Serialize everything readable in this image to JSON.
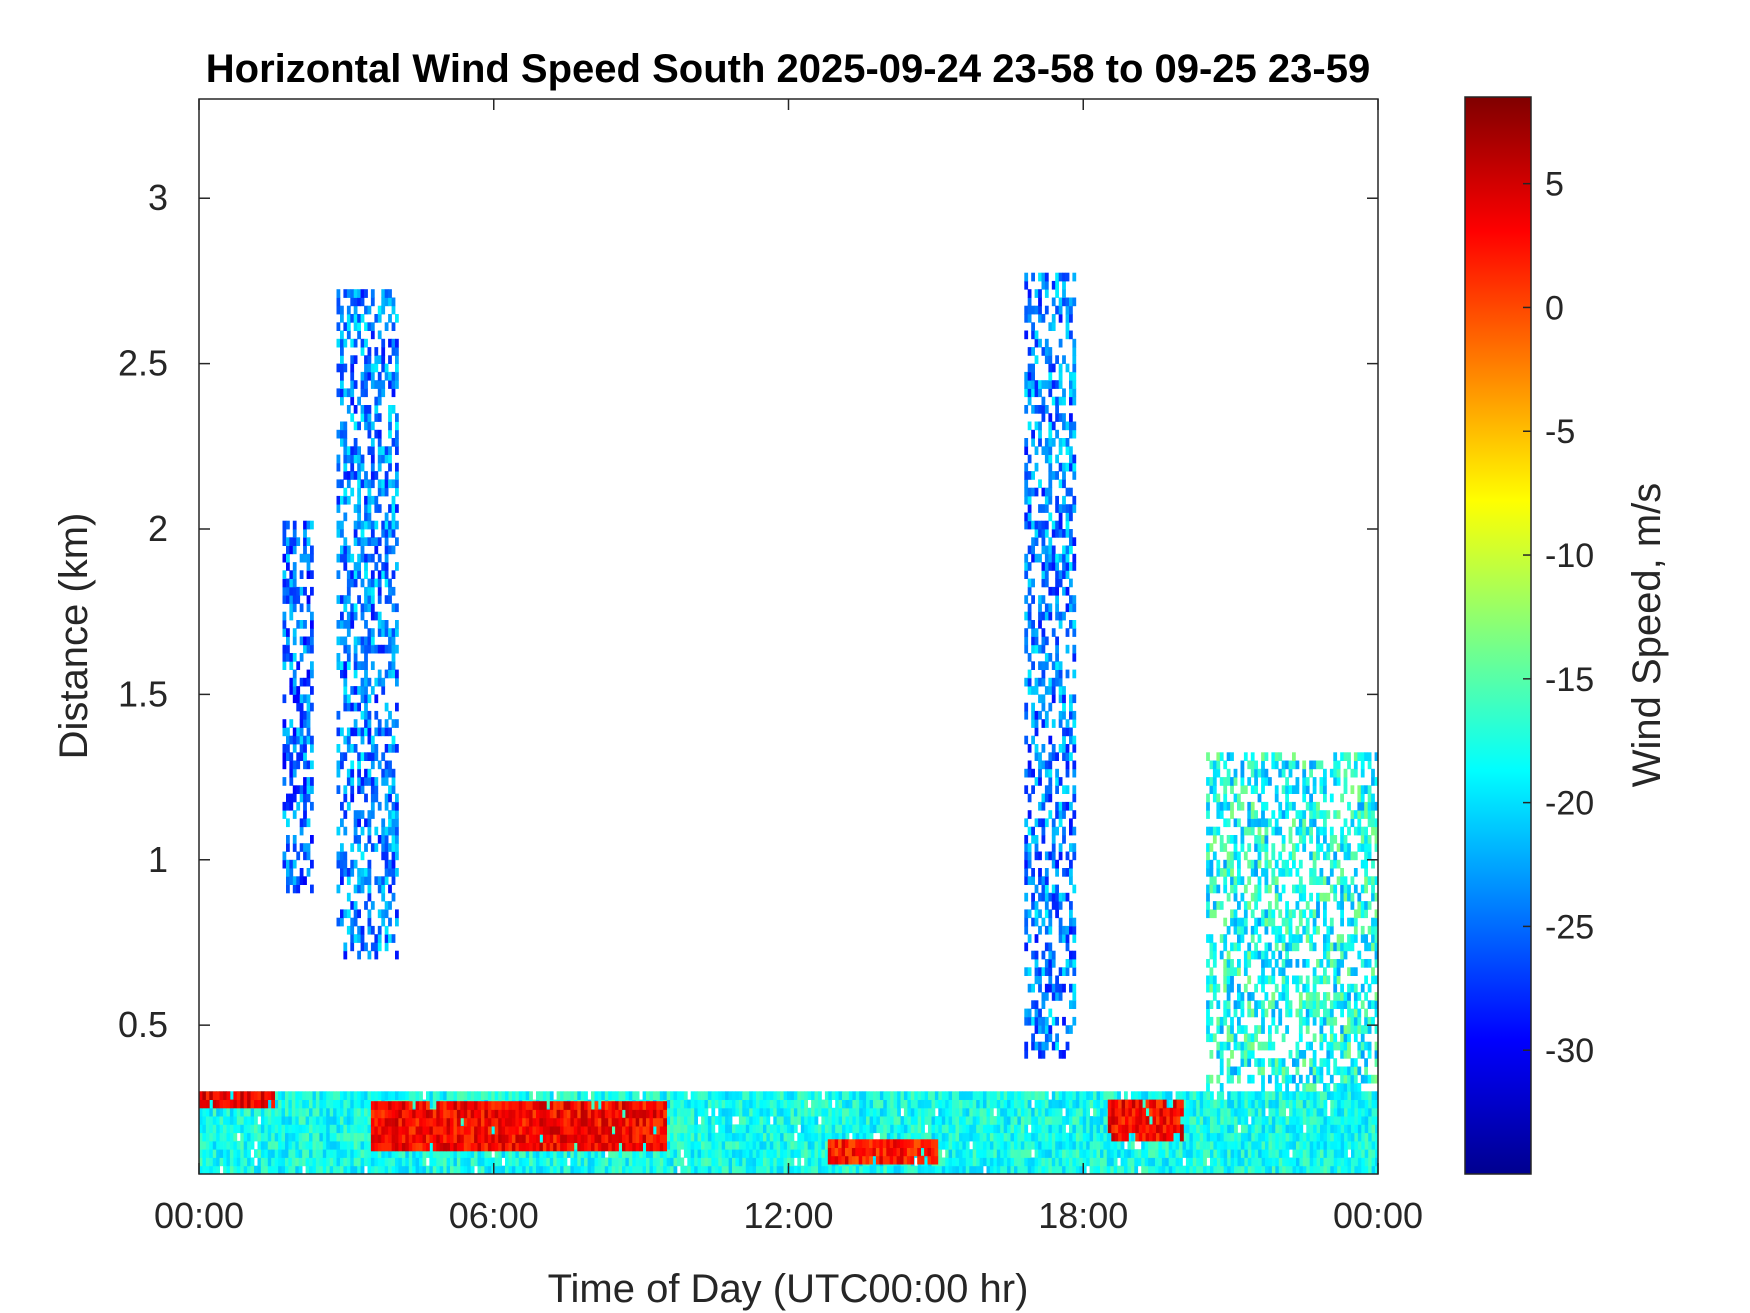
{
  "chart_data": {
    "type": "heatmap",
    "title": "Horizontal Wind Speed South 2025-09-24 23-58 to 09-25 23-59",
    "xlabel": "Time of Day (UTC00:00 hr)",
    "ylabel": "Distance (km)",
    "colorbar_label": "Wind Speed, m/s",
    "colormap": "jet",
    "x_ticks": [
      "00:00",
      "06:00",
      "12:00",
      "18:00",
      "00:00"
    ],
    "x_tick_hours": [
      0,
      6,
      12,
      18,
      24
    ],
    "xlim_hours": [
      0,
      24
    ],
    "y_ticks": [
      "0.5",
      "1",
      "1.5",
      "2",
      "2.5",
      "3"
    ],
    "y_tick_values": [
      0.5,
      1,
      1.5,
      2,
      2.5,
      3
    ],
    "ylim": [
      0.05,
      3.3
    ],
    "colorbar_ticks": [
      "5",
      "0",
      "-5",
      "-10",
      "-15",
      "-20",
      "-25",
      "-30"
    ],
    "colorbar_tick_values": [
      5,
      0,
      -5,
      -10,
      -15,
      -20,
      -25,
      -30
    ],
    "clim": [
      -35,
      8.5
    ],
    "grid": false,
    "legend": "colorbar-right",
    "features": [
      {
        "label": "near-surface layer",
        "hours": [
          0,
          24
        ],
        "distance_km": [
          0.05,
          0.3
        ],
        "wind_speed": -18
      },
      {
        "label": "jet core",
        "hours": [
          0,
          1.5
        ],
        "distance_km": [
          0.25,
          0.3
        ],
        "wind_speed": 4
      },
      {
        "label": "jet core",
        "hours": [
          3.5,
          9.5
        ],
        "distance_km": [
          0.12,
          0.25
        ],
        "wind_speed": 3
      },
      {
        "label": "jet core",
        "hours": [
          12.8,
          15
        ],
        "distance_km": [
          0.08,
          0.15
        ],
        "wind_speed": 2
      },
      {
        "label": "jet core",
        "hours": [
          18.5,
          20
        ],
        "distance_km": [
          0.15,
          0.25
        ],
        "wind_speed": 3
      },
      {
        "label": "plume",
        "hours": [
          1.7,
          2.3
        ],
        "distance_km": [
          0.9,
          2.0
        ],
        "wind_speed": -25
      },
      {
        "label": "plume",
        "hours": [
          2.8,
          4.0
        ],
        "distance_km": [
          0.7,
          2.7
        ],
        "wind_speed": -24
      },
      {
        "label": "plume",
        "hours": [
          16.8,
          17.8
        ],
        "distance_km": [
          0.4,
          2.75
        ],
        "wind_speed": -24
      },
      {
        "label": "plume",
        "hours": [
          20.5,
          24
        ],
        "distance_km": [
          0.3,
          1.3
        ],
        "wind_speed": -18
      }
    ]
  }
}
